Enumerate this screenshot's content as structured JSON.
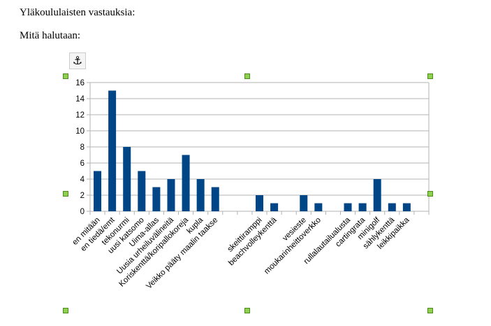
{
  "document": {
    "paragraphs": [
      "Yläkoululaisten vastauksia:",
      "Mitä halutaan:"
    ],
    "anchor_icon": "anchor-icon"
  },
  "chart_data": {
    "type": "bar",
    "title": "",
    "xlabel": "",
    "ylabel": "",
    "ylim": [
      0,
      16
    ],
    "yticks": [
      0,
      2,
      4,
      6,
      8,
      10,
      12,
      14,
      16
    ],
    "grid": true,
    "legend": "none",
    "bar_color": "#004586",
    "categories": [
      "en mitään",
      "en tiedä/emt",
      "tekonurmi",
      "uusi katsomo",
      "Uima-allas",
      "Uusia urheiluvälineitä",
      "Koriskenttä/koripallokoreja",
      "kupla",
      "Veikko pääty maalin taakse",
      "",
      "",
      "skeittiramppi",
      "beachvolleykenttä",
      "",
      "vesieste",
      "moukarinheittoverkko",
      "",
      "rullalautailualusta",
      "cartingrata",
      "minigolf",
      "sählykenttä",
      "leikkipaikka",
      ""
    ],
    "values": [
      5,
      15,
      8,
      5,
      3,
      4,
      7,
      4,
      3,
      null,
      null,
      2,
      1,
      null,
      2,
      1,
      null,
      1,
      1,
      4,
      1,
      1,
      null
    ]
  }
}
